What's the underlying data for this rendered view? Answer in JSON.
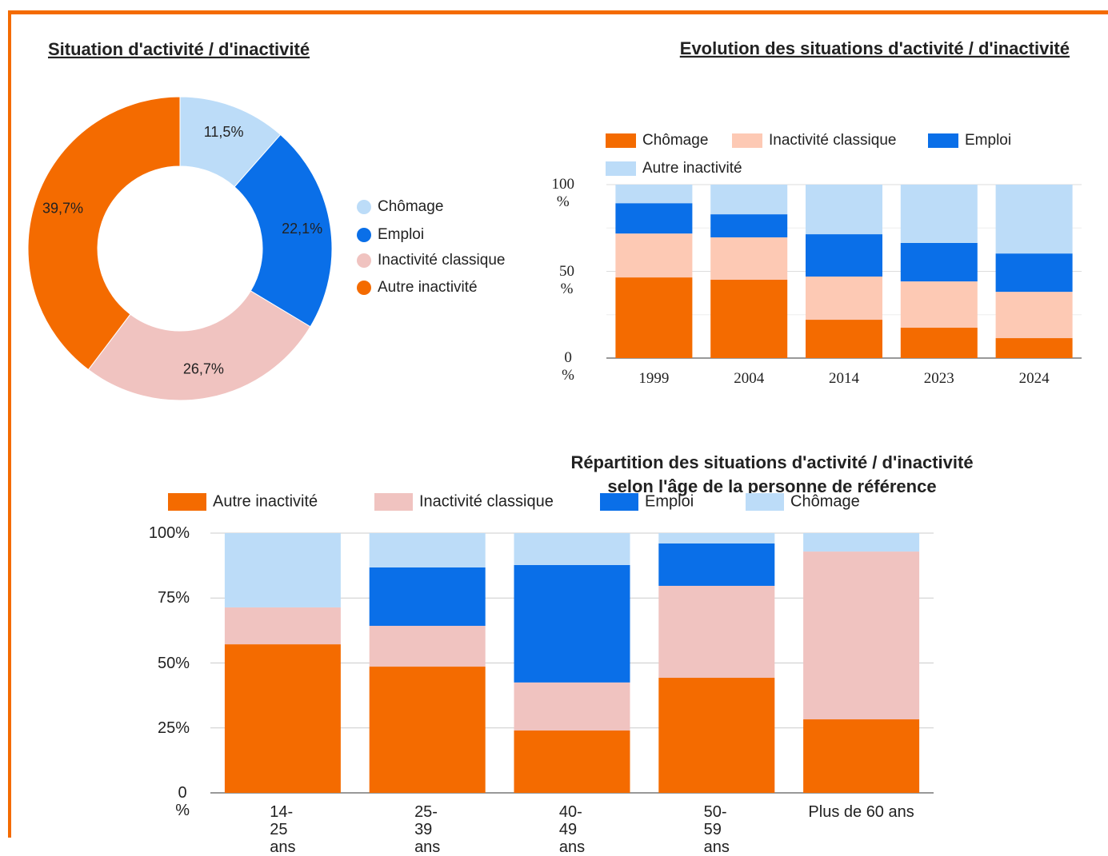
{
  "chart_data": [
    {
      "type": "pie",
      "title": "Situation d'activité / d'inactivité",
      "categories": [
        "Chômage",
        "Emploi",
        "Inactivité classique",
        "Autre inactivité"
      ],
      "values": [
        11.5,
        22.1,
        26.7,
        39.7
      ],
      "value_labels": [
        "11,5%",
        "22,1%",
        "26,7%",
        "39,7%"
      ],
      "colors": [
        "#bcdcf8",
        "#0a6fe8",
        "#f0c3c0",
        "#f46b00"
      ],
      "legend": "right"
    },
    {
      "type": "bar",
      "stacked": true,
      "title": "Evolution des situations d'activité / d'inactivité",
      "categories": [
        "1999",
        "2004",
        "2014",
        "2023",
        "2024"
      ],
      "series": [
        {
          "name": "Chômage",
          "color": "#f46b00",
          "values": [
            46.5,
            45.2,
            22.1,
            17.5,
            11.5
          ]
        },
        {
          "name": "Inactivité classique",
          "color": "#fdc9b4",
          "values": [
            25.3,
            24.4,
            24.9,
            26.7,
            26.7
          ]
        },
        {
          "name": "Emploi",
          "color": "#0a6fe8",
          "values": [
            17.5,
            13.3,
            24.4,
            22.2,
            22.1
          ]
        },
        {
          "name": "Autre inactivité",
          "color": "#bcdcf8",
          "values": [
            10.7,
            17.1,
            28.6,
            33.6,
            39.7
          ]
        }
      ],
      "ylim": [
        0,
        100
      ],
      "yticks": [
        {
          "value": 0,
          "label": "0 %"
        },
        {
          "value": 50,
          "label": "50 %"
        },
        {
          "value": 100,
          "label": "100 %"
        }
      ],
      "minor_yticks": [
        25,
        75
      ],
      "grid": true,
      "legend": "top"
    },
    {
      "type": "bar",
      "stacked": true,
      "title": [
        "Répartition des situations d'activité / d'inactivité",
        "selon l'âge de la personne de référence"
      ],
      "categories": [
        "14-25 ans",
        "25-39 ans",
        "40-49 ans",
        "50-59 ans",
        "Plus de 60 ans"
      ],
      "series": [
        {
          "name": "Autre inactivité",
          "color": "#f46b00",
          "values": [
            57.2,
            48.6,
            24.0,
            44.3,
            28.3
          ]
        },
        {
          "name": "Inactivité classique",
          "color": "#f0c3c0",
          "values": [
            14.2,
            15.7,
            18.5,
            35.4,
            64.6
          ]
        },
        {
          "name": "Emploi",
          "color": "#0a6fe8",
          "values": [
            0,
            22.5,
            45.2,
            16.3,
            0
          ]
        },
        {
          "name": "Chômage",
          "color": "#bcdcf8",
          "values": [
            28.6,
            13.2,
            12.3,
            4.0,
            7.1
          ]
        }
      ],
      "ylim": [
        0,
        100
      ],
      "yticks": [
        {
          "value": 0,
          "label": "0 %"
        },
        {
          "value": 25,
          "label": "25%"
        },
        {
          "value": 50,
          "label": "50%"
        },
        {
          "value": 75,
          "label": "75%"
        },
        {
          "value": 100,
          "label": "100%"
        }
      ],
      "grid": true,
      "legend": "top"
    }
  ]
}
